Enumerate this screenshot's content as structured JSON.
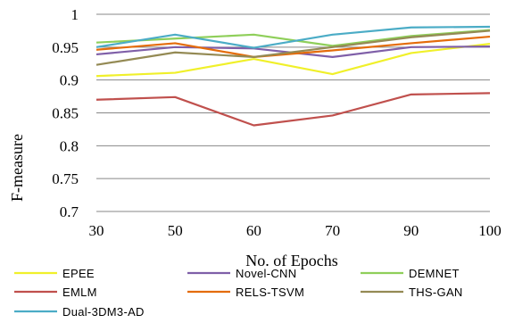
{
  "chart_data": {
    "type": "line",
    "xlabel": "No. of Epochs",
    "ylabel": "F-measure",
    "ylim": [
      0.7,
      1.0
    ],
    "yticks": [
      "0.7",
      "0.75",
      "0.8",
      "0.85",
      "0.9",
      "0.95",
      "1"
    ],
    "categories": [
      "30",
      "50",
      "60",
      "70",
      "90",
      "100"
    ],
    "grid": "horizontal",
    "legend_position": "bottom",
    "series": [
      {
        "name": "EPEE",
        "color": "#f0f02a",
        "values": [
          0.906,
          0.911,
          0.932,
          0.909,
          0.941,
          0.955
        ]
      },
      {
        "name": "Novel-CNN",
        "color": "#7f5fa8",
        "values": [
          0.939,
          0.95,
          0.948,
          0.935,
          0.95,
          0.951
        ]
      },
      {
        "name": "DEMNET",
        "color": "#8fcf5a",
        "values": [
          0.957,
          0.963,
          0.969,
          0.952,
          0.967,
          0.976
        ]
      },
      {
        "name": "EMLM",
        "color": "#c0504d",
        "values": [
          0.87,
          0.874,
          0.831,
          0.846,
          0.878,
          0.88
        ]
      },
      {
        "name": "RELS-TSVM",
        "color": "#e46c0a",
        "values": [
          0.946,
          0.956,
          0.935,
          0.945,
          0.956,
          0.966
        ]
      },
      {
        "name": "THS-GAN",
        "color": "#948a54",
        "values": [
          0.923,
          0.942,
          0.935,
          0.95,
          0.965,
          0.975
        ]
      },
      {
        "name": "Dual-3DM3-AD",
        "color": "#4bacc6",
        "values": [
          0.95,
          0.969,
          0.949,
          0.969,
          0.98,
          0.981
        ]
      }
    ]
  }
}
